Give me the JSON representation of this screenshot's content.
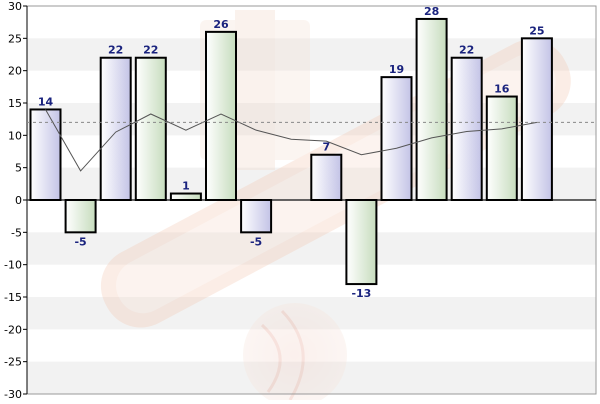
{
  "chart_data": {
    "type": "bar",
    "title": "",
    "xlabel": "",
    "ylabel": "",
    "ylim": [
      -30,
      30
    ],
    "yticks": [
      30,
      25,
      20,
      15,
      10,
      5,
      0,
      -5,
      -10,
      -15,
      -20,
      -25,
      -30
    ],
    "grid": "horizontal-bands",
    "legend": "none",
    "values": [
      14,
      -5,
      22,
      22,
      1,
      26,
      -5,
      null,
      7,
      -13,
      19,
      28,
      22,
      16,
      25
    ],
    "data_labels": [
      "14",
      "-5",
      "22",
      "22",
      "1",
      "26",
      "-5",
      "",
      "7",
      "-13",
      "19",
      "28",
      "22",
      "16",
      "25"
    ],
    "bar_colors": [
      "purple",
      "green",
      "purple",
      "green",
      "green",
      "green",
      "purple",
      "",
      "purple",
      "green",
      "purple",
      "green",
      "purple",
      "green",
      "purple"
    ],
    "trend_line": {
      "type": "line",
      "values": [
        14,
        4.5,
        10.5,
        13.3,
        10.8,
        13.3,
        10.8,
        9.4,
        9.1,
        7,
        8,
        9.6,
        10.6,
        11,
        12
      ]
    },
    "reference_line": {
      "value": 12,
      "style": "dashed"
    },
    "colors": {
      "purple_fill_light": "#ffffff",
      "purple_fill_dark": "#c3c3e6",
      "green_fill_light": "#ffffff",
      "green_fill_dark": "#c6dcbd",
      "bar_stroke": "#000000",
      "label_color": "#1a237e",
      "trend_line": "#555555",
      "reference_line": "#888888",
      "band_fill": "#f2f2f2",
      "zero_line": "#333333"
    }
  }
}
